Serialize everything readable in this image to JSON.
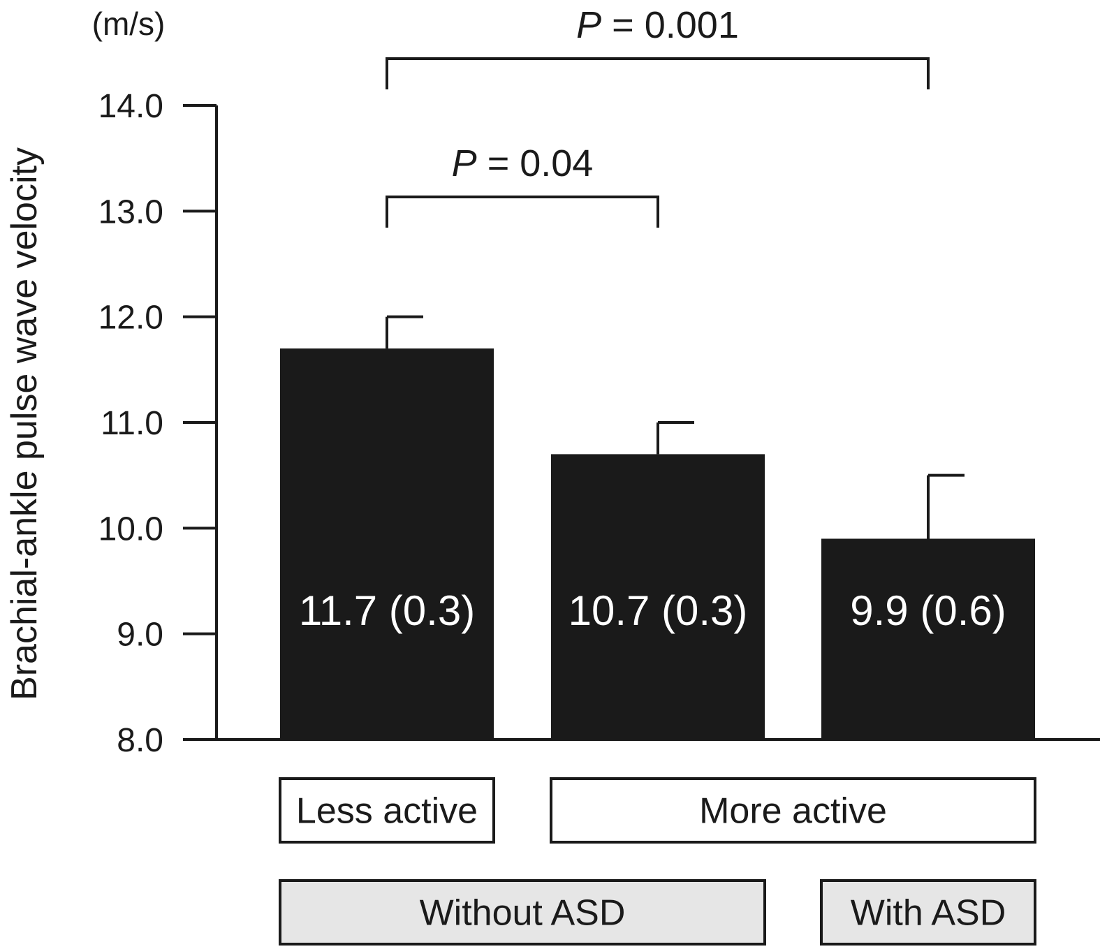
{
  "chart_data": {
    "type": "bar",
    "ylabel": "Brachial-ankle pulse wave velocity",
    "yunit": "(m/s)",
    "ylim": [
      8.0,
      14.0
    ],
    "yticks": [
      "8.0",
      "9.0",
      "10.0",
      "11.0",
      "12.0",
      "13.0",
      "14.0"
    ],
    "categories": [
      "Less active, Without ASD",
      "More active, Without ASD",
      "More active, With ASD"
    ],
    "values": [
      11.7,
      10.7,
      9.9
    ],
    "errors": [
      0.3,
      0.3,
      0.6
    ],
    "bar_labels": [
      "11.7 (0.3)",
      "10.7 (0.3)",
      "9.9 (0.6)"
    ],
    "comparisons": [
      {
        "from": 0,
        "to": 1,
        "p_label": "P",
        "p_text": " = 0.04"
      },
      {
        "from": 0,
        "to": 2,
        "p_label": "P",
        "p_text": " = 0.001"
      }
    ],
    "activity_groups": [
      {
        "label": "Less active",
        "span": [
          0,
          0
        ]
      },
      {
        "label": "More active",
        "span": [
          1,
          2
        ]
      }
    ],
    "asd_groups": [
      {
        "label": "Without ASD",
        "span": [
          0,
          1
        ]
      },
      {
        "label": "With ASD",
        "span": [
          2,
          2
        ]
      }
    ],
    "bar_color": "#1a1a1a",
    "asd_box_color": "#e6e6e6",
    "grid": false,
    "legend": "none"
  }
}
